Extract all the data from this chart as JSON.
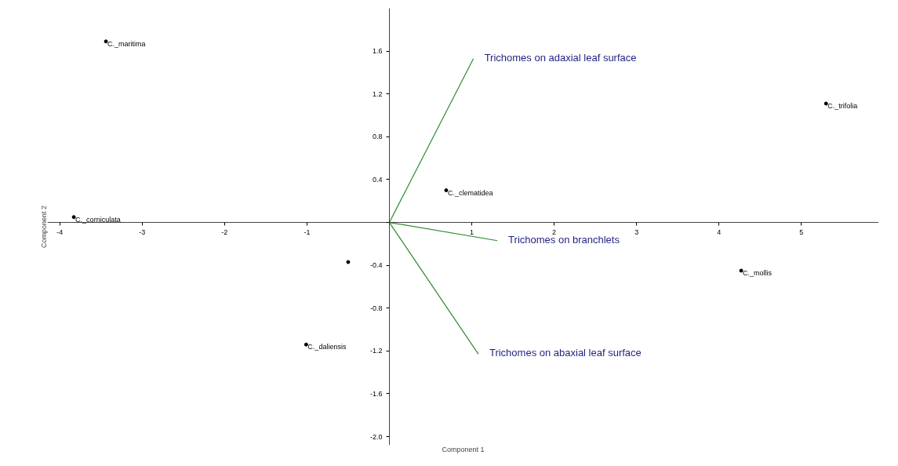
{
  "chart_data": {
    "type": "scatter",
    "xlabel": "Component 1",
    "ylabel": "Component 2",
    "xlim": [
      -4.15,
      5.94
    ],
    "ylim": [
      -2.08,
      2.0
    ],
    "xticks": [
      -4,
      -3,
      -2,
      -1,
      {
        "value": 0,
        "label": null
      },
      1,
      2,
      3,
      4,
      5
    ],
    "yticks": [
      {
        "value": -2.0,
        "label": "-2.0"
      },
      -1.6,
      -1.2,
      -0.8,
      -0.4,
      {
        "value": 0,
        "label": null
      },
      0.4,
      0.8,
      1.2,
      1.6
    ],
    "grid": false,
    "series": [
      {
        "marker": "circle",
        "color": "#000000",
        "x": [
          -3.44,
          -3.83,
          0.69,
          5.3,
          4.27,
          -1.01,
          -0.5
        ],
        "values": [
          1.69,
          0.05,
          0.3,
          1.11,
          -0.45,
          -1.14,
          -0.37
        ]
      },
      {
        "type": "line",
        "name": "Trichomes on adaxial leaf surface",
        "color": "#2e8b2e",
        "x": [
          0,
          1.02
        ],
        "values": [
          0,
          1.53
        ]
      },
      {
        "type": "line",
        "name": "Trichomes on branchlets",
        "color": "#2e8b2e",
        "x": [
          0,
          1.31
        ],
        "values": [
          0,
          -0.17
        ]
      },
      {
        "type": "line",
        "name": "Trichomes on abaxial leaf surface",
        "color": "#2e8b2e",
        "x": [
          0,
          1.08
        ],
        "values": [
          0,
          -1.23
        ]
      }
    ],
    "annotations": [
      {
        "text": "C._maritima",
        "x": -3.44,
        "y": 1.69
      },
      {
        "text": "C._corniculata",
        "x": -3.83,
        "y": 0.05
      },
      {
        "text": "C._clematidea",
        "x": 0.69,
        "y": 0.3
      },
      {
        "text": "C._trifolia",
        "x": 5.3,
        "y": 1.11
      },
      {
        "text": "C._mollis",
        "x": 4.27,
        "y": -0.45
      },
      {
        "text": "C._daliensis",
        "x": -1.01,
        "y": -1.14
      }
    ]
  }
}
